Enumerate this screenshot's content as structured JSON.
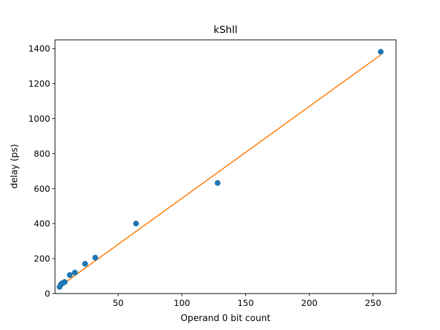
{
  "chart_data": {
    "type": "scatter",
    "title": "kShll",
    "xlabel": "Operand 0 bit count",
    "ylabel": "delay (ps)",
    "xlim": [
      0.4,
      268
    ],
    "ylim": [
      0,
      1450
    ],
    "xticks": [
      50,
      100,
      150,
      200,
      250
    ],
    "yticks": [
      0,
      200,
      400,
      600,
      800,
      1000,
      1200,
      1400
    ],
    "grid": false,
    "series": [
      {
        "kind": "scatter",
        "color": "#1f77b4",
        "x": [
          4,
          5,
          6,
          7,
          8,
          12,
          16,
          24,
          32,
          64,
          128,
          256
        ],
        "y": [
          38,
          52,
          58,
          62,
          66,
          106,
          120,
          170,
          205,
          400,
          632,
          1382
        ]
      },
      {
        "kind": "line",
        "color": "#ff7f0e",
        "x": [
          4,
          256
        ],
        "y": [
          40,
          1364
        ]
      }
    ]
  }
}
